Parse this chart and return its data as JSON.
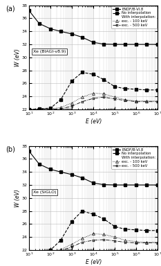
{
  "title_a": "Xe (BIAGI-v8.9)",
  "title_b": "Xe (SIGLO)",
  "xlabel": "E (eV)",
  "ylabel": "W (eV)",
  "label_a": "(a)",
  "label_b": "(b)",
  "xlim": [
    10.0,
    10000000.0
  ],
  "ylim": [
    22,
    38
  ],
  "yticks": [
    22,
    24,
    26,
    28,
    30,
    32,
    34,
    36,
    38
  ],
  "endf_x": [
    10.0,
    30.0,
    100.0,
    300.0,
    1000.0,
    3000.0,
    10000.0,
    30000.0,
    100000.0,
    300000.0,
    1000000.0,
    3000000.0,
    10000000.0
  ],
  "endf_y": [
    37.2,
    35.2,
    34.4,
    34.0,
    33.6,
    33.1,
    32.3,
    32.05,
    32.0,
    32.0,
    32.0,
    32.0,
    32.0
  ],
  "noint_biagi_x": [
    10.0,
    30.0,
    100.0,
    300.0,
    1000.0,
    3000.0,
    10000.0,
    30000.0,
    100000.0,
    300000.0,
    1000000.0,
    3000000.0,
    10000000.0
  ],
  "noint_biagi_y": [
    22.0,
    22.1,
    22.2,
    23.5,
    26.4,
    27.7,
    27.4,
    26.6,
    25.5,
    25.2,
    25.1,
    25.0,
    25.0
  ],
  "exc100_biagi_x": [
    10.0,
    30.0,
    100.0,
    300.0,
    1000.0,
    3000.0,
    10000.0,
    30000.0,
    100000.0,
    300000.0,
    1000000.0,
    3000000.0,
    10000000.0
  ],
  "exc100_biagi_y": [
    22.0,
    22.0,
    22.1,
    22.3,
    23.0,
    23.9,
    24.5,
    24.4,
    23.9,
    23.5,
    23.3,
    23.3,
    23.3
  ],
  "exc500_biagi_x": [
    10.0,
    30.0,
    100.0,
    300.0,
    1000.0,
    3000.0,
    10000.0,
    30000.0,
    100000.0,
    300000.0,
    1000000.0,
    3000000.0,
    10000000.0
  ],
  "exc500_biagi_y": [
    22.0,
    22.0,
    22.0,
    22.1,
    22.5,
    23.2,
    23.7,
    23.9,
    23.6,
    23.4,
    23.2,
    23.2,
    23.2
  ],
  "noint_siglo_x": [
    10.0,
    30.0,
    100.0,
    300.0,
    1000.0,
    3000.0,
    10000.0,
    30000.0,
    100000.0,
    300000.0,
    1000000.0,
    3000000.0,
    10000000.0
  ],
  "noint_siglo_y": [
    21.3,
    21.6,
    22.0,
    23.5,
    26.4,
    28.0,
    27.5,
    26.8,
    25.6,
    25.2,
    25.1,
    25.0,
    25.0
  ],
  "exc100_siglo_x": [
    10.0,
    30.0,
    100.0,
    300.0,
    1000.0,
    3000.0,
    10000.0,
    30000.0,
    100000.0,
    300000.0,
    1000000.0,
    3000000.0,
    10000000.0
  ],
  "exc100_siglo_y": [
    21.2,
    21.3,
    21.7,
    22.1,
    22.9,
    23.8,
    24.5,
    24.4,
    24.0,
    23.5,
    23.3,
    23.2,
    23.2
  ],
  "exc500_siglo_x": [
    10.0,
    30.0,
    100.0,
    300.0,
    1000.0,
    3000.0,
    10000.0,
    30000.0,
    100000.0,
    300000.0,
    1000000.0,
    3000000.0,
    10000000.0
  ],
  "exc500_siglo_y": [
    21.0,
    21.2,
    21.5,
    21.9,
    22.5,
    23.2,
    23.5,
    23.6,
    23.4,
    23.2,
    23.1,
    23.1,
    23.1
  ],
  "legend_labels": [
    "ENDF/B-VI.8",
    "No interpolation",
    "With interpolation:",
    "exc. - 100 keV",
    "exc. - 500 keV"
  ],
  "grid_color": "#bbbbbb",
  "background": "#ffffff",
  "fig_width": 2.33,
  "fig_height": 3.84,
  "dpi": 100
}
